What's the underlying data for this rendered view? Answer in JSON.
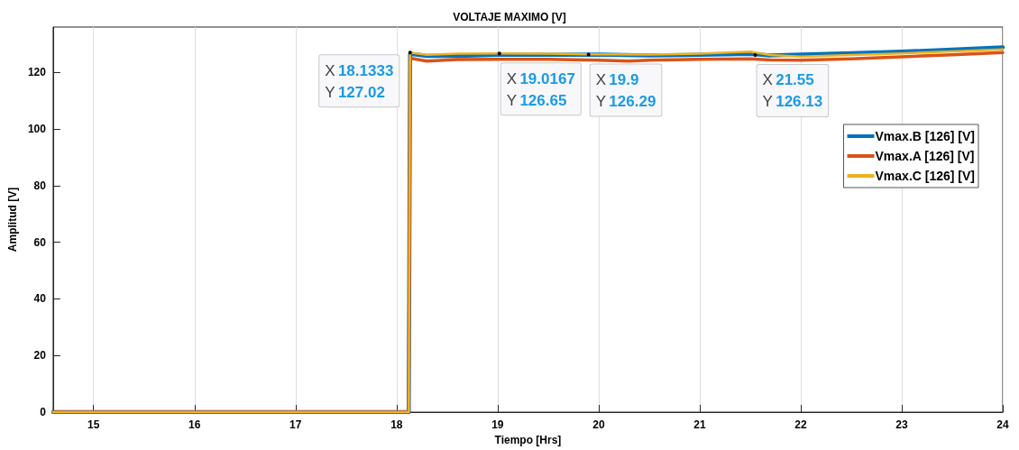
{
  "chart_data": {
    "type": "line",
    "title": "VOLTAJE MAXIMO [V]",
    "xlabel": "Tiempo [Hrs]",
    "ylabel": "Amplitud [V]",
    "xlim": [
      14.6,
      24
    ],
    "xticks": [
      15,
      16,
      17,
      18,
      19,
      20,
      21,
      22,
      23,
      24
    ],
    "ylim": [
      0,
      136
    ],
    "yticks": [
      0,
      20,
      40,
      60,
      80,
      100,
      120
    ],
    "grid": "x",
    "legend": "top right",
    "marker": "none",
    "line_style": "solid",
    "series": [
      {
        "name": "Vmax.B [126] [V]",
        "color": "#0072bd",
        "x": [
          14.6,
          18.12,
          18.1333,
          18.3,
          18.6,
          19,
          19.5,
          20,
          20.5,
          21,
          21.5,
          21.7,
          22,
          22.5,
          23,
          23.5,
          24
        ],
        "values": [
          0,
          0,
          126.5,
          125.8,
          125.8,
          126.2,
          126.2,
          126.3,
          126,
          126.2,
          126.5,
          126,
          126.3,
          126.8,
          127.3,
          128,
          128.8
        ]
      },
      {
        "name": "Vmax.A [126] [V]",
        "color": "#d95319",
        "x": [
          14.6,
          18.12,
          18.1333,
          18.3,
          18.6,
          19,
          19.5,
          20,
          20.3,
          20.5,
          21,
          21.5,
          21.7,
          22,
          22.5,
          23,
          23.5,
          24
        ],
        "values": [
          0,
          0,
          125,
          124,
          124.5,
          124.6,
          124.6,
          124.3,
          124,
          124.3,
          124.6,
          124.8,
          124.4,
          124.3,
          124.8,
          125.5,
          126.2,
          127
        ]
      },
      {
        "name": "Vmax.C [126] [V]",
        "color": "#edb120",
        "x": [
          14.6,
          18.12,
          18.1333,
          18.3,
          18.6,
          19,
          19.5,
          19.9,
          20.5,
          21,
          21.5,
          21.7,
          22,
          22.5,
          23,
          23.5,
          24
        ],
        "values": [
          0,
          0,
          127,
          126.2,
          126.6,
          126.7,
          126.6,
          126.4,
          126.3,
          126.6,
          127.3,
          126.1,
          125.6,
          126.1,
          126.7,
          127.4,
          128.1
        ]
      }
    ],
    "annotations": [
      {
        "text": "X 18.1333\nY 127.02",
        "x": 18.1333,
        "y": 127.02
      },
      {
        "text": "X 19.0167\nY 126.65",
        "x": 19.0167,
        "y": 126.65
      },
      {
        "text": "X 19.9\nY 126.29",
        "x": 19.9,
        "y": 126.29
      },
      {
        "text": "X 21.55\nY 126.13",
        "x": 21.55,
        "y": 126.13
      }
    ]
  }
}
